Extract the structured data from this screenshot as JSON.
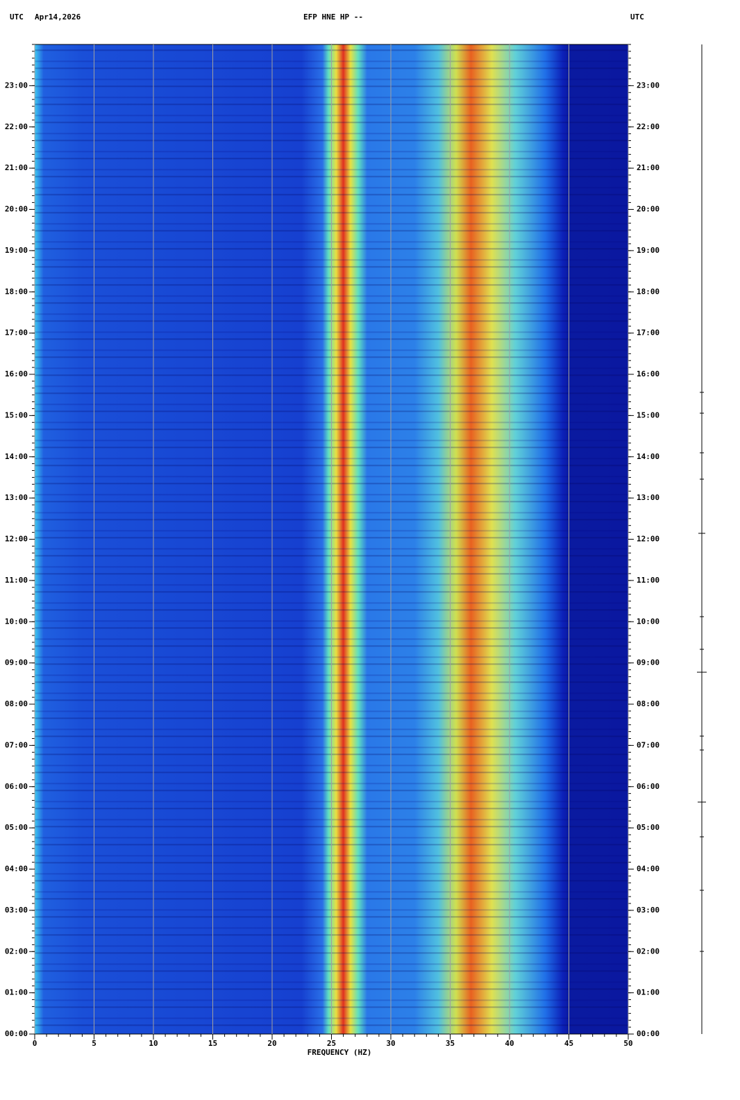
{
  "chart_data": {
    "type": "spectrogram",
    "title": "EFP HNE HP --",
    "timezone_left": "UTC",
    "date": "Apr14,2026",
    "timezone_right": "UTC",
    "xlabel": "FREQUENCY (HZ)",
    "xlim": [
      0,
      50
    ],
    "xticks": [
      0,
      5,
      10,
      15,
      20,
      25,
      30,
      35,
      40,
      45,
      50
    ],
    "ylim": [
      0,
      24
    ],
    "yticks": [
      {
        "value": 0,
        "label": "00:00"
      },
      {
        "value": 1,
        "label": "01:00"
      },
      {
        "value": 2,
        "label": "02:00"
      },
      {
        "value": 3,
        "label": "03:00"
      },
      {
        "value": 4,
        "label": "04:00"
      },
      {
        "value": 5,
        "label": "05:00"
      },
      {
        "value": 6,
        "label": "06:00"
      },
      {
        "value": 7,
        "label": "07:00"
      },
      {
        "value": 8,
        "label": "08:00"
      },
      {
        "value": 9,
        "label": "09:00"
      },
      {
        "value": 10,
        "label": "10:00"
      },
      {
        "value": 11,
        "label": "11:00"
      },
      {
        "value": 12,
        "label": "12:00"
      },
      {
        "value": 13,
        "label": "13:00"
      },
      {
        "value": 14,
        "label": "14:00"
      },
      {
        "value": 15,
        "label": "15:00"
      },
      {
        "value": 16,
        "label": "16:00"
      },
      {
        "value": 17,
        "label": "17:00"
      },
      {
        "value": 18,
        "label": "18:00"
      },
      {
        "value": 19,
        "label": "19:00"
      },
      {
        "value": 20,
        "label": "20:00"
      },
      {
        "value": 21,
        "label": "21:00"
      },
      {
        "value": 22,
        "label": "22:00"
      },
      {
        "value": 23,
        "label": "23:00"
      }
    ],
    "grid": true,
    "grid_color": "#a0a0a0"
  }
}
